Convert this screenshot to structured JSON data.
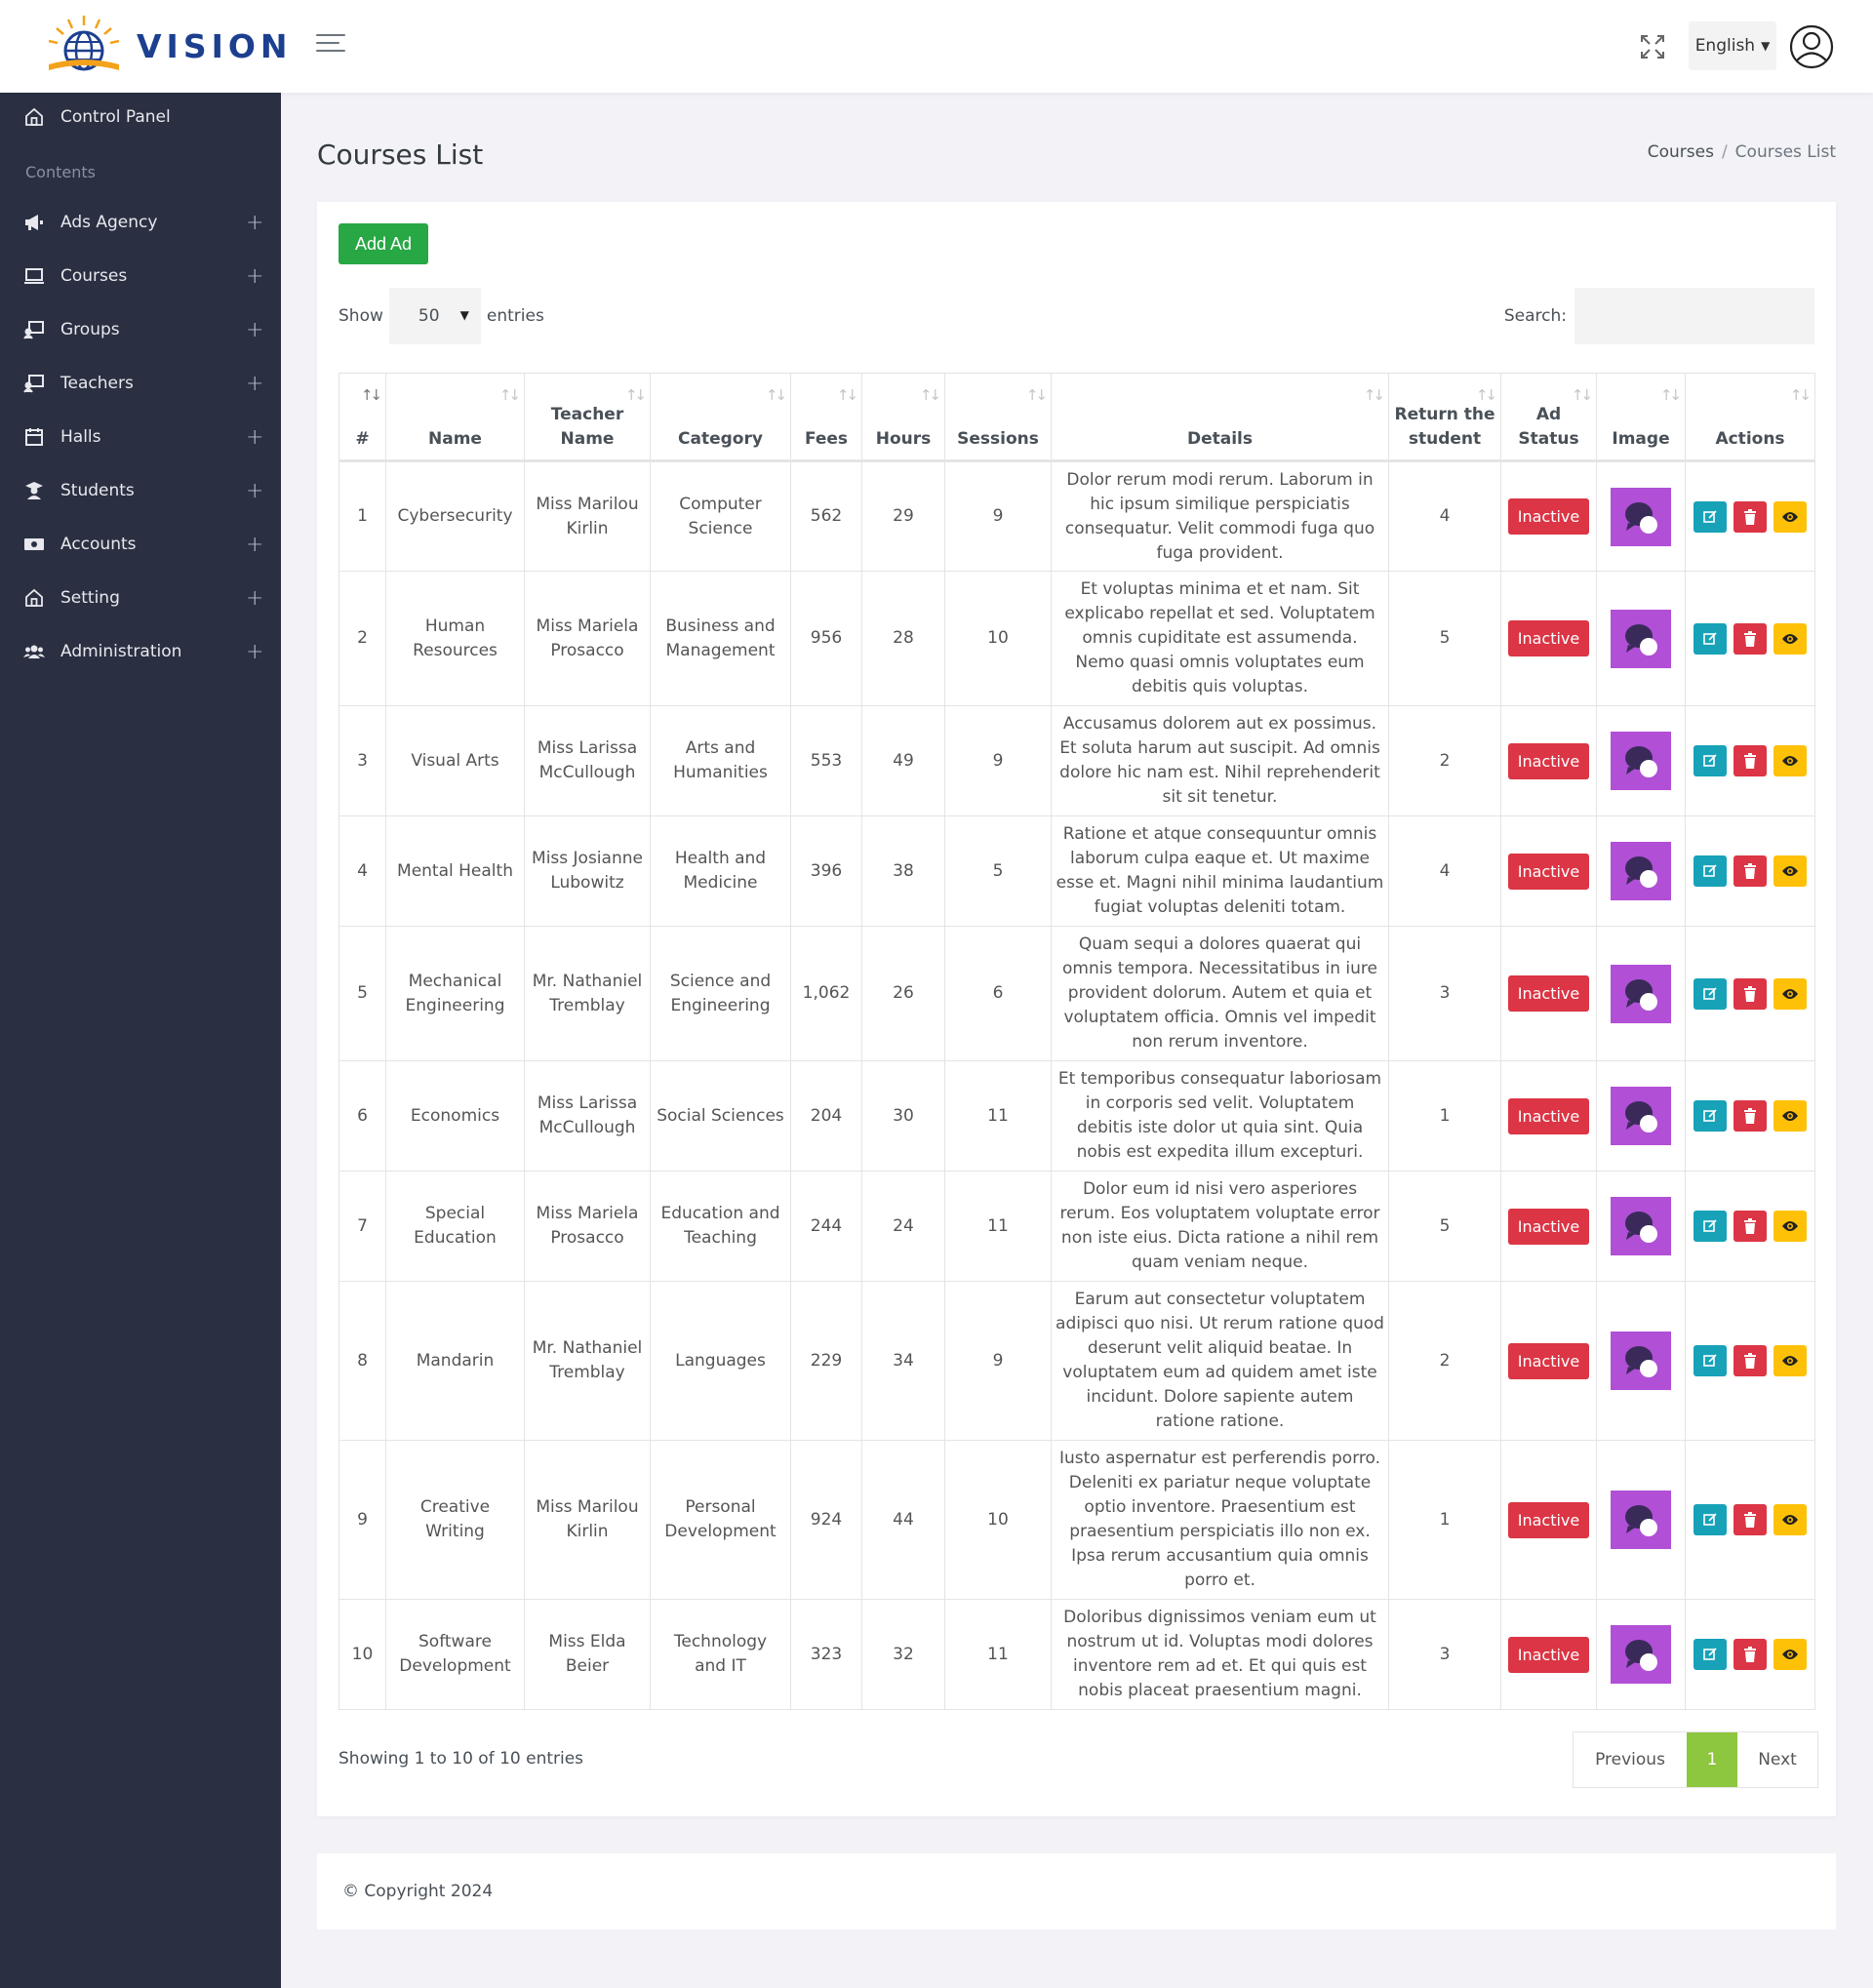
{
  "app": {
    "logo_text": "VISION",
    "language": "English"
  },
  "sidebar": {
    "control_panel": "Control Panel",
    "section": "Contents",
    "items": [
      {
        "label": "Ads Agency",
        "icon": "megaphone-icon"
      },
      {
        "label": "Courses",
        "icon": "laptop-icon"
      },
      {
        "label": "Groups",
        "icon": "chalkboard-icon"
      },
      {
        "label": "Teachers",
        "icon": "chalkboard-teacher-icon"
      },
      {
        "label": "Halls",
        "icon": "calendar-icon"
      },
      {
        "label": "Students",
        "icon": "user-graduate-icon"
      },
      {
        "label": "Accounts",
        "icon": "money-icon"
      },
      {
        "label": "Setting",
        "icon": "home-icon"
      },
      {
        "label": "Administration",
        "icon": "users-icon"
      }
    ],
    "plus": "+"
  },
  "page": {
    "title": "Courses List",
    "breadcrumb": [
      "Courses",
      "Courses List"
    ],
    "add_button": "Add Ad",
    "show_label": "Show",
    "entries_label": "entries",
    "page_length": "50",
    "search_label": "Search:",
    "search_value": "",
    "info": "Showing 1 to 10 of 10 entries",
    "pagination": {
      "previous": "Previous",
      "current": "1",
      "next": "Next"
    },
    "footer": "© Copyright 2024"
  },
  "table": {
    "headers": [
      "#",
      "Name",
      "Teacher Name",
      "Category",
      "Fees",
      "Hours",
      "Sessions",
      "Details",
      "Return the student",
      "Ad Status",
      "Image",
      "Actions"
    ],
    "rows": [
      {
        "num": "1",
        "name": "Cybersecurity",
        "teacher": "Miss Marilou Kirlin",
        "category": "Computer Science",
        "fees": "562",
        "hours": "29",
        "sessions": "9",
        "details": "Dolor rerum modi rerum. Laborum in hic ipsum similique perspiciatis consequatur. Velit commodi fuga quo fuga provident.",
        "return": "4",
        "status": "Inactive"
      },
      {
        "num": "2",
        "name": "Human Resources",
        "teacher": "Miss Mariela Prosacco",
        "category": "Business and Management",
        "fees": "956",
        "hours": "28",
        "sessions": "10",
        "details": "Et voluptas minima et et nam. Sit explicabo repellat et sed. Voluptatem omnis cupiditate est assumenda. Nemo quasi omnis voluptates eum debitis quis voluptas.",
        "return": "5",
        "status": "Inactive"
      },
      {
        "num": "3",
        "name": "Visual Arts",
        "teacher": "Miss Larissa McCullough",
        "category": "Arts and Humanities",
        "fees": "553",
        "hours": "49",
        "sessions": "9",
        "details": "Accusamus dolorem aut ex possimus. Et soluta harum aut suscipit. Ad omnis dolore hic nam est. Nihil reprehenderit sit sit tenetur.",
        "return": "2",
        "status": "Inactive"
      },
      {
        "num": "4",
        "name": "Mental Health",
        "teacher": "Miss Josianne Lubowitz",
        "category": "Health and Medicine",
        "fees": "396",
        "hours": "38",
        "sessions": "5",
        "details": "Ratione et atque consequuntur omnis laborum culpa eaque et. Ut maxime esse et. Magni nihil minima laudantium fugiat voluptas deleniti totam.",
        "return": "4",
        "status": "Inactive"
      },
      {
        "num": "5",
        "name": "Mechanical Engineering",
        "teacher": "Mr. Nathaniel Tremblay",
        "category": "Science and Engineering",
        "fees": "1,062",
        "hours": "26",
        "sessions": "6",
        "details": "Quam sequi a dolores quaerat qui omnis tempora. Necessitatibus in iure provident dolorum. Autem et quia et voluptatem officia. Omnis vel impedit non rerum inventore.",
        "return": "3",
        "status": "Inactive"
      },
      {
        "num": "6",
        "name": "Economics",
        "teacher": "Miss Larissa McCullough",
        "category": "Social Sciences",
        "fees": "204",
        "hours": "30",
        "sessions": "11",
        "details": "Et temporibus consequatur laboriosam in corporis sed velit. Voluptatem debitis iste dolor ut quia sint. Quia nobis est expedita illum excepturi.",
        "return": "1",
        "status": "Inactive"
      },
      {
        "num": "7",
        "name": "Special Education",
        "teacher": "Miss Mariela Prosacco",
        "category": "Education and Teaching",
        "fees": "244",
        "hours": "24",
        "sessions": "11",
        "details": "Dolor eum id nisi vero asperiores rerum. Eos voluptatem voluptate error non iste eius. Dicta ratione a nihil rem quam veniam neque.",
        "return": "5",
        "status": "Inactive"
      },
      {
        "num": "8",
        "name": "Mandarin",
        "teacher": "Mr. Nathaniel Tremblay",
        "category": "Languages",
        "fees": "229",
        "hours": "34",
        "sessions": "9",
        "details": "Earum aut consectetur voluptatem adipisci quo nisi. Ut rerum ratione quod deserunt velit aliquid beatae. In voluptatem eum ad quidem amet iste incidunt. Dolore sapiente autem ratione ratione.",
        "return": "2",
        "status": "Inactive"
      },
      {
        "num": "9",
        "name": "Creative Writing",
        "teacher": "Miss Marilou Kirlin",
        "category": "Personal Development",
        "fees": "924",
        "hours": "44",
        "sessions": "10",
        "details": "Iusto aspernatur est perferendis porro. Deleniti ex pariatur neque voluptate optio inventore. Praesentium est praesentium perspiciatis illo non ex. Ipsa rerum accusantium quia omnis porro et.",
        "return": "1",
        "status": "Inactive"
      },
      {
        "num": "10",
        "name": "Software Development",
        "teacher": "Miss Elda Beier",
        "category": "Technology and IT",
        "fees": "323",
        "hours": "32",
        "sessions": "11",
        "details": "Doloribus dignissimos veniam eum ut nostrum ut id. Voluptas modi dolores inventore rem ad et. Et qui quis est nobis placeat praesentium magni.",
        "return": "3",
        "status": "Inactive"
      }
    ]
  },
  "colors": {
    "sidebar_bg": "#2a3042",
    "add_button": "#28a745",
    "inactive_badge": "#dc3545",
    "image_placeholder": "#b14fd6",
    "edit_button": "#17a2b8",
    "delete_button": "#dc3545",
    "view_button": "#ffc107",
    "active_page": "#8dc63f"
  }
}
